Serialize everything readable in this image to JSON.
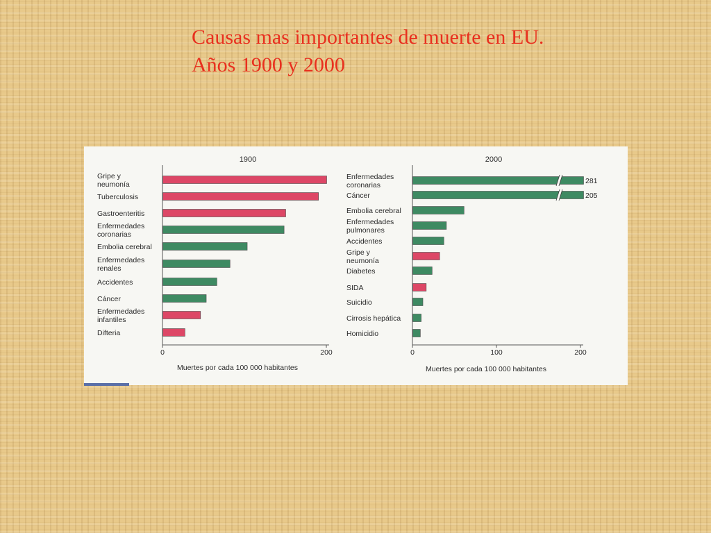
{
  "title": {
    "line1": "Causas mas importantes de muerte en EU.",
    "line2": "Años 1900 y 2000"
  },
  "colors": {
    "infectious": "#dd4766",
    "chronic": "#3e8a62",
    "title": "#e8301e"
  },
  "chart_data": [
    {
      "type": "bar",
      "orientation": "horizontal",
      "title": "1900",
      "xlabel": "Muertes por cada 100 000 habitantes",
      "xlim": [
        0,
        200
      ],
      "xticks": [
        "0",
        "200"
      ],
      "categories": [
        {
          "lines": [
            "Gripe y",
            "neumonía"
          ],
          "value": 200,
          "kind": "infectious"
        },
        {
          "lines": [
            "Tuberculosis"
          ],
          "value": 190,
          "kind": "infectious"
        },
        {
          "lines": [
            "Gastroenteritis"
          ],
          "value": 150,
          "kind": "infectious"
        },
        {
          "lines": [
            "Enfermedades",
            "coronarias"
          ],
          "value": 148,
          "kind": "chronic"
        },
        {
          "lines": [
            "Embolia cerebral"
          ],
          "value": 103,
          "kind": "chronic"
        },
        {
          "lines": [
            "Enfermedades",
            "renales"
          ],
          "value": 82,
          "kind": "chronic"
        },
        {
          "lines": [
            "Accidentes"
          ],
          "value": 66,
          "kind": "chronic"
        },
        {
          "lines": [
            "Cáncer"
          ],
          "value": 53,
          "kind": "chronic"
        },
        {
          "lines": [
            "Enfermedades",
            "infantiles"
          ],
          "value": 46,
          "kind": "infectious"
        },
        {
          "lines": [
            "Difteria"
          ],
          "value": 27,
          "kind": "infectious"
        }
      ]
    },
    {
      "type": "bar",
      "orientation": "horizontal",
      "title": "2000",
      "xlabel": "Muertes por cada 100 000 habitantes",
      "xlim": [
        0,
        200
      ],
      "xticks": [
        "0",
        "100",
        "200"
      ],
      "axis_break": true,
      "categories": [
        {
          "lines": [
            "Enfermedades",
            "coronarias"
          ],
          "value": 281,
          "label": "281",
          "kind": "chronic"
        },
        {
          "lines": [
            "Cáncer"
          ],
          "value": 205,
          "label": "205",
          "kind": "chronic"
        },
        {
          "lines": [
            "Embolia cerebral"
          ],
          "value": 61,
          "kind": "chronic"
        },
        {
          "lines": [
            "Enfermedades",
            "pulmonares"
          ],
          "value": 40,
          "kind": "chronic"
        },
        {
          "lines": [
            "Accidentes"
          ],
          "value": 37,
          "kind": "chronic"
        },
        {
          "lines": [
            "Gripe y",
            "neumonía"
          ],
          "value": 32,
          "kind": "infectious"
        },
        {
          "lines": [
            "Diabetes"
          ],
          "value": 23,
          "kind": "chronic"
        },
        {
          "lines": [
            "SIDA"
          ],
          "value": 16,
          "kind": "infectious"
        },
        {
          "lines": [
            "Suicidio"
          ],
          "value": 12,
          "kind": "chronic"
        },
        {
          "lines": [
            "Cirrosis hepática"
          ],
          "value": 10,
          "kind": "chronic"
        },
        {
          "lines": [
            "Homicidio"
          ],
          "value": 9,
          "kind": "chronic"
        }
      ]
    }
  ]
}
